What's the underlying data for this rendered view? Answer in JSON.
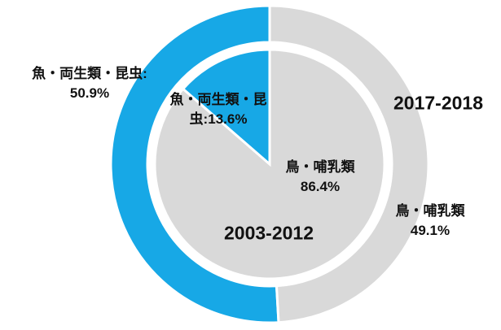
{
  "chart_data": [
    {
      "type": "donut",
      "title": "2017-2018",
      "categories": [
        "魚・両生類・昆虫:",
        "鳥・哺乳類"
      ],
      "values": [
        50.9,
        49.1
      ],
      "value_labels": [
        "50.9%",
        "49.1%"
      ],
      "colors": [
        "#17a8e6",
        "#d9d9d9"
      ]
    },
    {
      "type": "pie",
      "title": "2003-2012",
      "categories": [
        "魚・両生類・昆虫:",
        "鳥・哺乳類"
      ],
      "values": [
        13.6,
        86.4
      ],
      "value_labels": [
        "13.6%",
        "86.4%"
      ],
      "colors": [
        "#17a8e6",
        "#d9d9d9"
      ]
    }
  ]
}
